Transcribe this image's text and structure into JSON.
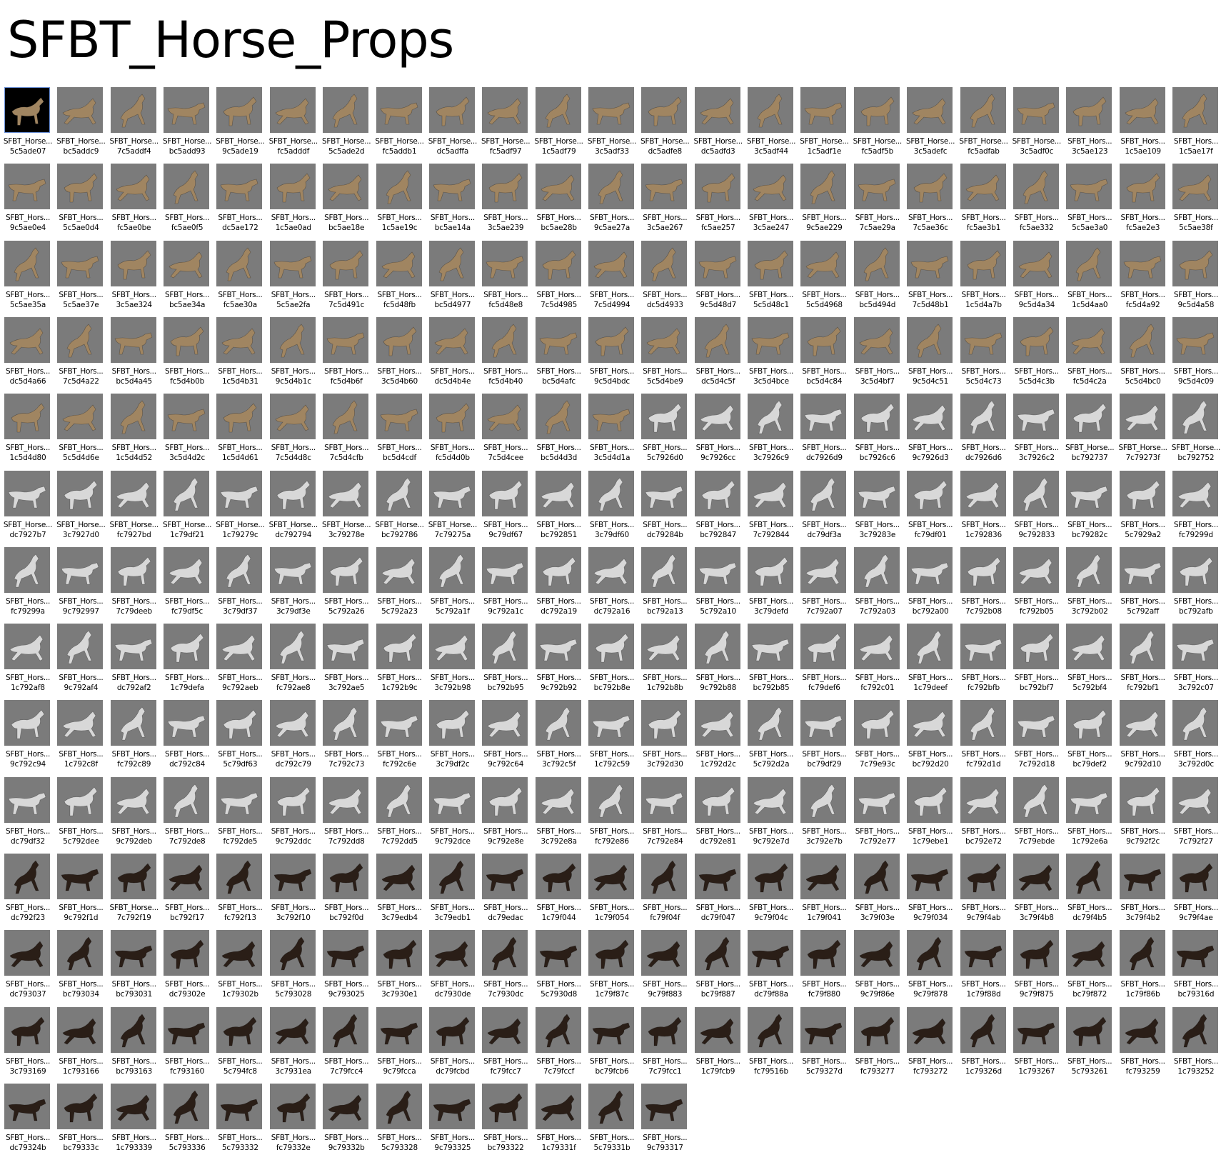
{
  "title": "SFBT_Horse_Props",
  "rows": [
    {
      "labels": [
        "SFBT_Horse...",
        "SFBT_Horse...",
        "SFBT_Horse...",
        "SFBT_Horse...",
        "SFBT_Horse...",
        "SFBT_Horse...",
        "SFBT_Horse...",
        "SFBT_Horse...",
        "SFBT_Horse...",
        "SFBT_Horse...",
        "SFBT_Horse...",
        "SFBT_Horse...",
        "SFBT_Horse...",
        "SFBT_Horse...",
        "SFBT_Horse...",
        "SFBT_Horse...",
        "SFBT_Horse...",
        "SFBT_Horse...",
        "SFBT_Horse...",
        "SFBT_Horse...",
        "SFBT_Hors...",
        "SFBT_Hors...",
        "SFBT_Hors..."
      ],
      "ids": [
        "5c5ade07",
        "bc5addc9",
        "7c5addf4",
        "bc5add93",
        "9c5ade19",
        "fc5adddf",
        "5c5ade2d",
        "fc5addb1",
        "dc5adffa",
        "fc5adf97",
        "1c5adf79",
        "3c5adf33",
        "dc5adfe8",
        "dc5adfd3",
        "3c5adf44",
        "1c5adf1e",
        "fc5adf5b",
        "3c5adefc",
        "fc5adfab",
        "3c5adf0c",
        "3c5ae123",
        "1c5ae109",
        "1c5ae17f"
      ]
    },
    {
      "labels": [
        "SFBT_Hors...",
        "SFBT_Hors...",
        "SFBT_Hors...",
        "SFBT_Hors...",
        "SFBT_Hors...",
        "SFBT_Hors...",
        "SFBT_Hors...",
        "SFBT_Hors...",
        "SFBT_Hors...",
        "SFBT_Hors...",
        "SFBT_Hors...",
        "SFBT_Hors...",
        "SFBT_Hors...",
        "SFBT_Hors...",
        "SFBT_Hors...",
        "SFBT_Hors...",
        "SFBT_Hors...",
        "SFBT_Hors...",
        "SFBT_Hors...",
        "SFBT_Hors...",
        "SFBT_Hors...",
        "SFBT_Hors...",
        "SFBT_Hors..."
      ],
      "ids": [
        "9c5ae0e4",
        "5c5ae0d4",
        "fc5ae0be",
        "fc5ae0f5",
        "dc5ae172",
        "1c5ae0ad",
        "bc5ae18e",
        "1c5ae19c",
        "bc5ae14a",
        "3c5ae239",
        "bc5ae28b",
        "9c5ae27a",
        "3c5ae267",
        "fc5ae257",
        "3c5ae247",
        "9c5ae229",
        "7c5ae29a",
        "7c5ae36c",
        "fc5ae3b1",
        "fc5ae332",
        "5c5ae3a0",
        "fc5ae2e3",
        "5c5ae38f"
      ]
    },
    {
      "labels": [
        "SFBT_Hors...",
        "SFBT_Hors...",
        "SFBT_Hors...",
        "SFBT_Hors...",
        "SFBT_Hors...",
        "SFBT_Hors...",
        "SFBT_Hors...",
        "SFBT_Hors...",
        "SFBT_Hors...",
        "SFBT_Hors...",
        "SFBT_Hors...",
        "SFBT_Hors...",
        "SFBT_Hors...",
        "SFBT_Hors...",
        "SFBT_Hors...",
        "SFBT_Hors...",
        "SFBT_Hors...",
        "SFBT_Hors...",
        "SFBT_Hors...",
        "SFBT_Hors...",
        "SFBT_Hors...",
        "SFBT_Hors...",
        "SFBT_Hors..."
      ],
      "ids": [
        "5c5ae35a",
        "5c5ae37e",
        "3c5ae324",
        "bc5ae34a",
        "fc5ae30a",
        "5c5ae2fa",
        "7c5d491c",
        "fc5d48fb",
        "bc5d4977",
        "fc5d48e8",
        "7c5d4985",
        "7c5d4994",
        "dc5d4933",
        "9c5d48d7",
        "5c5d48c1",
        "5c5d4968",
        "bc5d494d",
        "7c5d48b1",
        "1c5d4a7b",
        "9c5d4a34",
        "1c5d4aa0",
        "fc5d4a92",
        "9c5d4a58"
      ]
    },
    {
      "labels": [
        "SFBT_Hors...",
        "SFBT_Hors...",
        "SFBT_Hors...",
        "SFBT_Hors...",
        "SFBT_Hors...",
        "SFBT_Hors...",
        "SFBT_Hors...",
        "SFBT_Hors...",
        "SFBT_Hors...",
        "SFBT_Hors...",
        "SFBT_Hors...",
        "SFBT_Hors...",
        "SFBT_Hors...",
        "SFBT_Hors...",
        "SFBT_Hors...",
        "SFBT_Hors...",
        "SFBT_Hors...",
        "SFBT_Hors...",
        "SFBT_Hors...",
        "SFBT_Hors...",
        "SFBT_Hors...",
        "SFBT_Hors...",
        "SFBT_Hors..."
      ],
      "ids": [
        "dc5d4a66",
        "7c5d4a22",
        "bc5d4a45",
        "fc5d4b0b",
        "1c5d4b31",
        "9c5d4b1c",
        "fc5d4b6f",
        "3c5d4b60",
        "dc5d4b4e",
        "fc5d4b40",
        "bc5d4afc",
        "9c5d4bdc",
        "5c5d4be9",
        "dc5d4c5f",
        "3c5d4bce",
        "bc5d4c84",
        "3c5d4bf7",
        "9c5d4c51",
        "5c5d4c73",
        "5c5d4c3b",
        "fc5d4c2a",
        "5c5d4bc0",
        "9c5d4c09"
      ]
    },
    {
      "labels": [
        "SFBT_Hors...",
        "SFBT_Hors...",
        "SFBT_Hors...",
        "SFBT_Hors...",
        "SFBT_Hors...",
        "SFBT_Hors...",
        "SFBT_Hors...",
        "SFBT_Hors...",
        "SFBT_Hors...",
        "SFBT_Hors...",
        "SFBT_Hors...",
        "SFBT_Hors...",
        "SFBT_Hors...",
        "SFBT_Hors...",
        "SFBT_Hors...",
        "SFBT_Hors...",
        "SFBT_Hors...",
        "SFBT_Hors...",
        "SFBT_Hors...",
        "SFBT_Hors...",
        "SFBT_Horse...",
        "SFBT_Horse...",
        "SFBT_Horse..."
      ],
      "ids": [
        "1c5d4d80",
        "5c5d4d6e",
        "1c5d4d52",
        "3c5d4d2c",
        "1c5d4d61",
        "7c5d4d8c",
        "7c5d4cfb",
        "bc5d4cdf",
        "fc5d4d0b",
        "7c5d4cee",
        "bc5d4d3d",
        "3c5d4d1a",
        "5c7926d0",
        "9c7926cc",
        "3c7926c9",
        "dc7926d9",
        "bc7926c6",
        "9c7926d3",
        "dc7926d6",
        "3c7926c2",
        "bc792737",
        "7c79273f",
        "bc792752"
      ]
    },
    {
      "labels": [
        "SFBT_Horse...",
        "SFBT_Horse...",
        "SFBT_Horse...",
        "SFBT_Horse...",
        "SFBT_Horse...",
        "SFBT_Horse...",
        "SFBT_Horse...",
        "SFBT_Horse...",
        "SFBT_Horse...",
        "SFBT_Hors...",
        "SFBT_Hors...",
        "SFBT_Hors...",
        "SFBT_Hors...",
        "SFBT_Hors...",
        "SFBT_Hors...",
        "SFBT_Hors...",
        "SFBT_Hors...",
        "SFBT_Hors...",
        "SFBT_Hors...",
        "SFBT_Hors...",
        "SFBT_Hors...",
        "SFBT_Hors...",
        "SFBT_Hors..."
      ],
      "ids": [
        "dc7927b7",
        "3c7927d0",
        "fc7927bd",
        "1c79df21",
        "1c79279c",
        "dc792794",
        "3c79278e",
        "bc792786",
        "7c79275a",
        "9c79df67",
        "bc792851",
        "3c79df60",
        "dc79284b",
        "bc792847",
        "7c792844",
        "dc79df3a",
        "3c79283e",
        "fc79df01",
        "1c792836",
        "9c792833",
        "bc79282c",
        "5c7929a2",
        "fc79299d"
      ]
    },
    {
      "labels": [
        "SFBT_Hors...",
        "SFBT_Hors...",
        "SFBT_Hors...",
        "SFBT_Hors...",
        "SFBT_Hors...",
        "SFBT_Hors...",
        "SFBT_Hors...",
        "SFBT_Hors...",
        "SFBT_Hors...",
        "SFBT_Hors...",
        "SFBT_Hors...",
        "SFBT_Hors...",
        "SFBT_Hors...",
        "SFBT_Hors...",
        "SFBT_Hors...",
        "SFBT_Hors...",
        "SFBT_Hors...",
        "SFBT_Hors...",
        "SFBT_Hors...",
        "SFBT_Hors...",
        "SFBT_Hors...",
        "SFBT_Hors...",
        "SFBT_Hors..."
      ],
      "ids": [
        "fc79299a",
        "9c792997",
        "7c79deeb",
        "fc79df5c",
        "3c79df37",
        "3c79df3e",
        "5c792a26",
        "5c792a23",
        "5c792a1f",
        "9c792a1c",
        "dc792a19",
        "dc792a16",
        "bc792a13",
        "5c792a10",
        "3c79defd",
        "7c792a07",
        "7c792a03",
        "bc792a00",
        "7c792b08",
        "fc792b05",
        "3c792b02",
        "5c792aff",
        "bc792afb"
      ]
    },
    {
      "labels": [
        "SFBT_Hors...",
        "SFBT_Hors...",
        "SFBT_Hors...",
        "SFBT_Hors...",
        "SFBT_Hors...",
        "SFBT_Hors...",
        "SFBT_Hors...",
        "SFBT_Hors...",
        "SFBT_Hors...",
        "SFBT_Hors...",
        "SFBT_Hors...",
        "SFBT_Hors...",
        "SFBT_Hors...",
        "SFBT_Hors...",
        "SFBT_Hors...",
        "SFBT_Hors...",
        "SFBT_Hors...",
        "SFBT_Hors...",
        "SFBT_Hors...",
        "SFBT_Hors...",
        "SFBT_Hors...",
        "SFBT_Hors...",
        "SFBT_Hors..."
      ],
      "ids": [
        "1c792af8",
        "9c792af4",
        "dc792af2",
        "1c79defa",
        "9c792aeb",
        "fc792ae8",
        "3c792ae5",
        "1c792b9c",
        "3c792b98",
        "bc792b95",
        "9c792b92",
        "bc792b8e",
        "1c792b8b",
        "9c792b88",
        "bc792b85",
        "fc79def6",
        "fc792c01",
        "1c79deef",
        "fc792bfb",
        "bc792bf7",
        "5c792bf4",
        "fc792bf1",
        "3c792c07"
      ]
    },
    {
      "labels": [
        "SFBT_Hors...",
        "SFBT_Hors...",
        "SFBT_Hors...",
        "SFBT_Hors...",
        "SFBT_Hors...",
        "SFBT_Hors...",
        "SFBT_Hors...",
        "SFBT_Hors...",
        "SFBT_Hors...",
        "SFBT_Hors...",
        "SFBT_Hors...",
        "SFBT_Hors...",
        "SFBT_Hors...",
        "SFBT_Hors...",
        "SFBT_Hors...",
        "SFBT_Hors...",
        "SFBT_Hors...",
        "SFBT_Hors...",
        "SFBT_Hors...",
        "SFBT_Hors...",
        "SFBT_Hors...",
        "SFBT_Hors...",
        "SFBT_Hors..."
      ],
      "ids": [
        "9c792c94",
        "1c792c8f",
        "fc792c89",
        "dc792c84",
        "5c79df63",
        "dc792c79",
        "7c792c73",
        "fc792c6e",
        "3c79df2c",
        "9c792c64",
        "3c792c5f",
        "1c792c59",
        "3c792d30",
        "1c792d2c",
        "5c792d2a",
        "bc79df29",
        "7c79e93c",
        "bc792d20",
        "fc792d1d",
        "7c792d18",
        "bc79def2",
        "9c792d10",
        "3c792d0c"
      ]
    },
    {
      "labels": [
        "SFBT_Hors...",
        "SFBT_Hors...",
        "SFBT_Hors...",
        "SFBT_Hors...",
        "SFBT_Hors...",
        "SFBT_Hors...",
        "SFBT_Hors...",
        "SFBT_Hors...",
        "SFBT_Hors...",
        "SFBT_Hors...",
        "SFBT_Hors...",
        "SFBT_Hors...",
        "SFBT_Hors...",
        "SFBT_Hors...",
        "SFBT_Hors...",
        "SFBT_Hors...",
        "SFBT_Hors...",
        "SFBT_Hors...",
        "SFBT_Hors...",
        "SFBT_Hors...",
        "SFBT_Hors...",
        "SFBT_Hors...",
        "SFBT_Hors..."
      ],
      "ids": [
        "dc79df32",
        "5c792dee",
        "9c792deb",
        "7c792de8",
        "fc792de5",
        "9c792ddc",
        "7c792dd8",
        "7c792dd5",
        "9c792dce",
        "9c792e8e",
        "3c792e8a",
        "fc792e86",
        "7c792e84",
        "dc792e81",
        "9c792e7d",
        "3c792e7b",
        "7c792e77",
        "1c79ebe1",
        "bc792e72",
        "7c79ebde",
        "1c792e6a",
        "9c792f2c",
        "7c792f27"
      ]
    },
    {
      "labels": [
        "SFBT_Hors...",
        "SFBT_Hors...",
        "SFBT_Horse...",
        "SFBT_Hors...",
        "SFBT_Hors...",
        "SFBT_Hors...",
        "SFBT_Hors...",
        "SFBT_Hors...",
        "SFBT_Hors...",
        "SFBT_Hors...",
        "SFBT_Hors...",
        "SFBT_Hors...",
        "SFBT_Hors...",
        "SFBT_Hors...",
        "SFBT_Hors...",
        "SFBT_Hors...",
        "SFBT_Hors...",
        "SFBT_Hors...",
        "SFBT_Hors...",
        "SFBT_Hors...",
        "SFBT_Hors...",
        "SFBT_Hors...",
        "SFBT_Hors..."
      ],
      "ids": [
        "dc792f23",
        "9c792f1d",
        "7c792f19",
        "bc792f17",
        "fc792f13",
        "3c792f10",
        "bc792f0d",
        "3c79edb4",
        "3c79edb1",
        "dc79edac",
        "1c79f044",
        "1c79f054",
        "fc79f04f",
        "dc79f047",
        "9c79f04c",
        "1c79f041",
        "3c79f03e",
        "9c79f034",
        "9c79f4ab",
        "3c79f4b8",
        "dc79f4b5",
        "3c79f4b2",
        "9c79f4ae"
      ]
    },
    {
      "labels": [
        "SFBT_Hors...",
        "SFBT_Hors...",
        "SFBT_Hors...",
        "SFBT_Hors...",
        "SFBT_Hors...",
        "SFBT_Hors...",
        "SFBT_Hors...",
        "SFBT_Hors...",
        "SFBT_Hors...",
        "SFBT_Hors...",
        "SFBT_Hors...",
        "SFBT_Hors...",
        "SFBT_Hors...",
        "SFBT_Hors...",
        "SFBT_Hors...",
        "SFBT_Hors...",
        "SFBT_Hors...",
        "SFBT_Hors...",
        "SFBT_Hors...",
        "SFBT_Hors...",
        "SFBT_Hors...",
        "SFBT_Hors...",
        "SFBT_Hors..."
      ],
      "ids": [
        "dc793037",
        "bc793034",
        "bc793031",
        "dc79302e",
        "1c79302b",
        "5c793028",
        "9c793025",
        "3c7930e1",
        "dc7930de",
        "7c7930dc",
        "5c7930d8",
        "1c79f87c",
        "9c79f883",
        "bc79f887",
        "dc79f88a",
        "fc79f880",
        "9c79f86e",
        "9c79f878",
        "1c79f88d",
        "9c79f875",
        "bc79f872",
        "1c79f86b",
        "bc79316d"
      ]
    },
    {
      "labels": [
        "SFBT_Hors...",
        "SFBT_Hors...",
        "SFBT_Hors...",
        "SFBT_Hors...",
        "SFBT_Hors...",
        "SFBT_Hors...",
        "SFBT_Hors...",
        "SFBT_Hors...",
        "SFBT_Hors...",
        "SFBT_Hors...",
        "SFBT_Hors...",
        "SFBT_Hors...",
        "SFBT_Hors...",
        "SFBT_Hors...",
        "SFBT_Hors...",
        "SFBT_Hors...",
        "SFBT_Hors...",
        "SFBT_Hors...",
        "SFBT_Hors...",
        "SFBT_Hors...",
        "SFBT_Hors...",
        "SFBT_Hors...",
        "SFBT_Hors..."
      ],
      "ids": [
        "3c793169",
        "1c793166",
        "bc793163",
        "fc793160",
        "5c794fc8",
        "3c7931ea",
        "7c79fcc4",
        "9c79fcca",
        "dc79fcbd",
        "fc79fcc7",
        "7c79fccf",
        "bc79fcb6",
        "7c79fcc1",
        "1c79fcb9",
        "fc79516b",
        "5c79327d",
        "fc793277",
        "fc793272",
        "1c79326d",
        "1c793267",
        "5c793261",
        "fc793259",
        "1c793252"
      ]
    },
    {
      "labels": [
        "SFBT_Hors...",
        "SFBT_Hors...",
        "SFBT_Hors...",
        "SFBT_Hors...",
        "SFBT_Hors...",
        "SFBT_Hors...",
        "SFBT_Hors...",
        "SFBT_Hors...",
        "SFBT_Hors...",
        "SFBT_Hors...",
        "SFBT_Hors...",
        "SFBT_Hors...",
        "SFBT_Hors..."
      ],
      "ids": [
        "dc79324b",
        "bc79333c",
        "1c793339",
        "5c793336",
        "5c793332",
        "fc79332e",
        "9c79332b",
        "5c793328",
        "9c793325",
        "bc793322",
        "1c79331f",
        "5c79331b",
        "9c793317"
      ]
    }
  ],
  "horse_colors": [
    "#a08561",
    "#d8d8d8",
    "#2a1e17"
  ],
  "thumb_background": "#7b7b7b"
}
